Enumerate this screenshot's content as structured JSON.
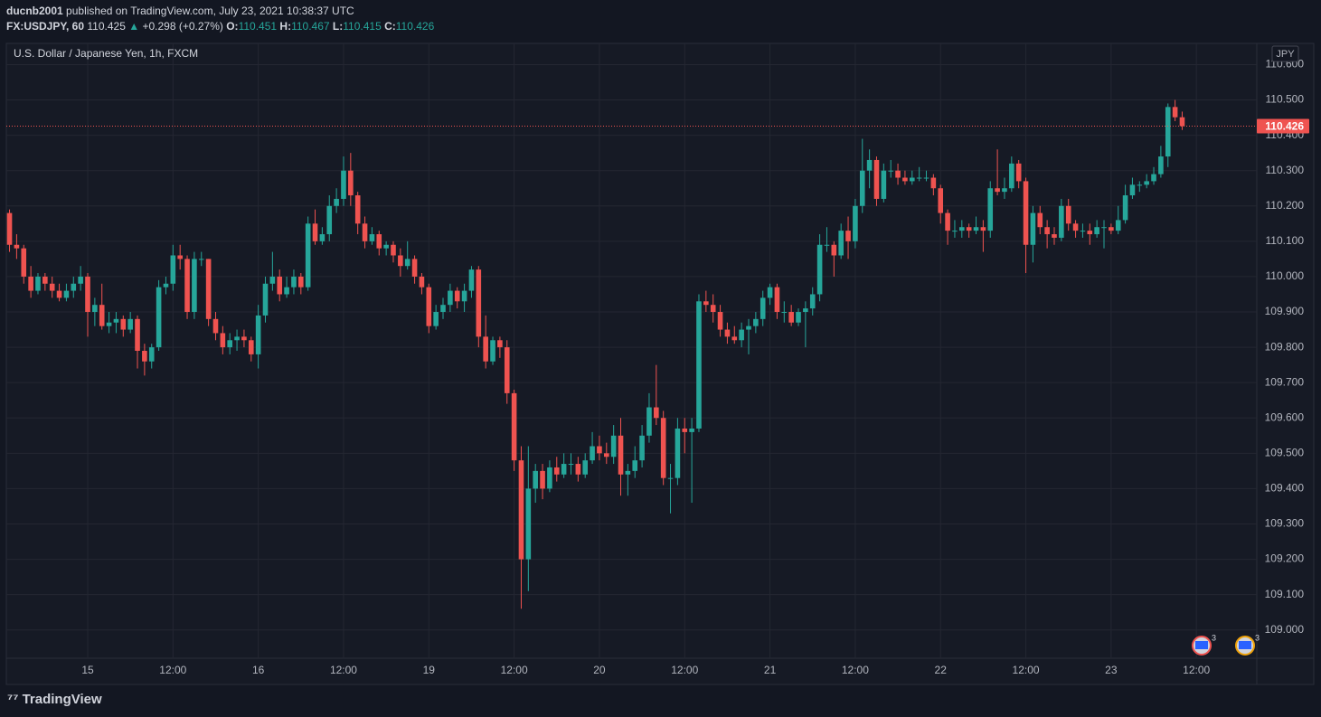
{
  "header": {
    "author": "ducnb2001",
    "published": "published on TradingView.com, July 23, 2021 10:38:37 UTC",
    "symbol": "FX:USDJPY, 60",
    "price": "110.425",
    "arrow": "▲",
    "change": "+0.298 (+0.27%)",
    "o_label": "O:",
    "o": "110.451",
    "h_label": "H:",
    "h": "110.467",
    "l_label": "L:",
    "l": "110.415",
    "c_label": "C:",
    "c": "110.426"
  },
  "footer": {
    "logo": "TradingView"
  },
  "event_badges": [
    "3",
    "3"
  ],
  "chart_data": {
    "type": "candlestick",
    "legend": "U.S. Dollar / Japanese Yen, 1h, FXCM",
    "currency": "JPY",
    "up_color": "#26a69a",
    "down_color": "#ef5350",
    "grid": true,
    "last_price": 110.426,
    "xlim": [
      -0.45,
      175.5
    ],
    "ylim": [
      108.92,
      110.66
    ],
    "xticks": [
      {
        "value": 11,
        "label": "15"
      },
      {
        "value": 23,
        "label": "12:00"
      },
      {
        "value": 35,
        "label": "16"
      },
      {
        "value": 47,
        "label": "12:00"
      },
      {
        "value": 59,
        "label": "19"
      },
      {
        "value": 71,
        "label": "12:00"
      },
      {
        "value": 83,
        "label": "20"
      },
      {
        "value": 95,
        "label": "12:00"
      },
      {
        "value": 107,
        "label": "21"
      },
      {
        "value": 119,
        "label": "12:00"
      },
      {
        "value": 131,
        "label": "22"
      },
      {
        "value": 143,
        "label": "12:00"
      },
      {
        "value": 155,
        "label": "23"
      },
      {
        "value": 167,
        "label": "12:00"
      }
    ],
    "yticks": [
      {
        "value": 109.0,
        "label": "109.000"
      },
      {
        "value": 109.1,
        "label": "109.100"
      },
      {
        "value": 109.2,
        "label": "109.200"
      },
      {
        "value": 109.3,
        "label": "109.300"
      },
      {
        "value": 109.4,
        "label": "109.400"
      },
      {
        "value": 109.5,
        "label": "109.500"
      },
      {
        "value": 109.6,
        "label": "109.600"
      },
      {
        "value": 109.7,
        "label": "109.700"
      },
      {
        "value": 109.8,
        "label": "109.800"
      },
      {
        "value": 109.9,
        "label": "109.900"
      },
      {
        "value": 110.0,
        "label": "110.000"
      },
      {
        "value": 110.1,
        "label": "110.100"
      },
      {
        "value": 110.2,
        "label": "110.200"
      },
      {
        "value": 110.3,
        "label": "110.300"
      },
      {
        "value": 110.4,
        "label": "110.400"
      },
      {
        "value": 110.5,
        "label": "110.500"
      },
      {
        "value": 110.6,
        "label": "110.600"
      }
    ],
    "candles": [
      [
        110.18,
        110.19,
        110.07,
        110.09
      ],
      [
        110.09,
        110.12,
        110.05,
        110.08
      ],
      [
        110.08,
        110.09,
        109.98,
        110.0
      ],
      [
        110.0,
        110.03,
        109.94,
        109.96
      ],
      [
        109.96,
        110.01,
        109.95,
        110.0
      ],
      [
        110.0,
        110.01,
        109.96,
        109.98
      ],
      [
        109.98,
        110.0,
        109.94,
        109.96
      ],
      [
        109.96,
        109.98,
        109.93,
        109.94
      ],
      [
        109.94,
        109.98,
        109.93,
        109.96
      ],
      [
        109.96,
        110.0,
        109.94,
        109.98
      ],
      [
        109.98,
        110.03,
        109.96,
        110.0
      ],
      [
        110.0,
        110.01,
        109.83,
        109.9
      ],
      [
        109.9,
        109.94,
        109.86,
        109.92
      ],
      [
        109.92,
        109.98,
        109.85,
        109.86
      ],
      [
        109.86,
        109.9,
        109.84,
        109.87
      ],
      [
        109.87,
        109.9,
        109.84,
        109.88
      ],
      [
        109.88,
        109.89,
        109.83,
        109.85
      ],
      [
        109.85,
        109.9,
        109.84,
        109.88
      ],
      [
        109.88,
        109.89,
        109.74,
        109.79
      ],
      [
        109.79,
        109.81,
        109.72,
        109.76
      ],
      [
        109.76,
        109.81,
        109.74,
        109.8
      ],
      [
        109.8,
        109.99,
        109.79,
        109.97
      ],
      [
        109.97,
        110.0,
        109.95,
        109.98
      ],
      [
        109.98,
        110.09,
        109.96,
        110.06
      ],
      [
        110.06,
        110.09,
        110.02,
        110.05
      ],
      [
        110.05,
        110.06,
        109.88,
        109.9
      ],
      [
        109.9,
        110.07,
        109.88,
        110.05
      ],
      [
        110.05,
        110.07,
        110.03,
        110.05
      ],
      [
        110.05,
        110.05,
        109.86,
        109.88
      ],
      [
        109.88,
        109.9,
        109.82,
        109.84
      ],
      [
        109.84,
        109.86,
        109.78,
        109.8
      ],
      [
        109.8,
        109.84,
        109.78,
        109.82
      ],
      [
        109.82,
        109.85,
        109.79,
        109.83
      ],
      [
        109.83,
        109.85,
        109.8,
        109.82
      ],
      [
        109.82,
        109.83,
        109.76,
        109.78
      ],
      [
        109.78,
        109.92,
        109.74,
        109.89
      ],
      [
        109.89,
        110.0,
        109.87,
        109.98
      ],
      [
        109.98,
        110.07,
        109.96,
        110.0
      ],
      [
        110.0,
        110.02,
        109.93,
        109.95
      ],
      [
        109.95,
        110.0,
        109.94,
        109.97
      ],
      [
        109.97,
        110.02,
        109.95,
        110.0
      ],
      [
        110.0,
        110.01,
        109.95,
        109.97
      ],
      [
        109.97,
        110.17,
        109.96,
        110.15
      ],
      [
        110.15,
        110.19,
        110.09,
        110.1
      ],
      [
        110.1,
        110.14,
        110.09,
        110.12
      ],
      [
        110.12,
        110.23,
        110.1,
        110.2
      ],
      [
        110.2,
        110.25,
        110.18,
        110.22
      ],
      [
        110.22,
        110.34,
        110.2,
        110.3
      ],
      [
        110.3,
        110.35,
        110.2,
        110.23
      ],
      [
        110.23,
        110.24,
        110.12,
        110.15
      ],
      [
        110.15,
        110.17,
        110.08,
        110.1
      ],
      [
        110.1,
        110.14,
        110.09,
        110.12
      ],
      [
        110.12,
        110.13,
        110.06,
        110.08
      ],
      [
        110.08,
        110.1,
        110.06,
        110.09
      ],
      [
        110.09,
        110.1,
        110.04,
        110.06
      ],
      [
        110.06,
        110.08,
        110.0,
        110.03
      ],
      [
        110.03,
        110.1,
        110.02,
        110.05
      ],
      [
        110.05,
        110.06,
        109.98,
        110.0
      ],
      [
        110.0,
        110.01,
        109.95,
        109.97
      ],
      [
        109.97,
        109.98,
        109.84,
        109.86
      ],
      [
        109.86,
        109.92,
        109.85,
        109.9
      ],
      [
        109.9,
        109.94,
        109.88,
        109.92
      ],
      [
        109.92,
        109.98,
        109.9,
        109.96
      ],
      [
        109.96,
        109.97,
        109.91,
        109.93
      ],
      [
        109.93,
        109.98,
        109.9,
        109.96
      ],
      [
        109.96,
        110.03,
        109.94,
        110.02
      ],
      [
        110.02,
        110.03,
        109.8,
        109.83
      ],
      [
        109.83,
        109.89,
        109.74,
        109.76
      ],
      [
        109.76,
        109.83,
        109.75,
        109.82
      ],
      [
        109.82,
        109.83,
        109.77,
        109.8
      ],
      [
        109.8,
        109.82,
        109.64,
        109.67
      ],
      [
        109.67,
        109.68,
        109.45,
        109.48
      ],
      [
        109.48,
        109.52,
        109.06,
        109.2
      ],
      [
        109.2,
        109.52,
        109.11,
        109.4
      ],
      [
        109.4,
        109.47,
        109.36,
        109.45
      ],
      [
        109.45,
        109.47,
        109.37,
        109.4
      ],
      [
        109.4,
        109.48,
        109.39,
        109.46
      ],
      [
        109.46,
        109.49,
        109.42,
        109.44
      ],
      [
        109.44,
        109.5,
        109.43,
        109.47
      ],
      [
        109.47,
        109.5,
        109.44,
        109.47
      ],
      [
        109.47,
        109.49,
        109.42,
        109.44
      ],
      [
        109.44,
        109.5,
        109.43,
        109.48
      ],
      [
        109.48,
        109.56,
        109.47,
        109.52
      ],
      [
        109.52,
        109.55,
        109.48,
        109.5
      ],
      [
        109.5,
        109.53,
        109.47,
        109.49
      ],
      [
        109.49,
        109.58,
        109.47,
        109.55
      ],
      [
        109.55,
        109.6,
        109.38,
        109.44
      ],
      [
        109.44,
        109.47,
        109.38,
        109.45
      ],
      [
        109.45,
        109.52,
        109.43,
        109.48
      ],
      [
        109.48,
        109.58,
        109.46,
        109.55
      ],
      [
        109.55,
        109.67,
        109.53,
        109.63
      ],
      [
        109.63,
        109.75,
        109.58,
        109.6
      ],
      [
        109.6,
        109.62,
        109.41,
        109.43
      ],
      [
        109.43,
        109.47,
        109.33,
        109.43
      ],
      [
        109.43,
        109.6,
        109.41,
        109.57
      ],
      [
        109.57,
        109.6,
        109.5,
        109.56
      ],
      [
        109.56,
        109.6,
        109.36,
        109.57
      ],
      [
        109.57,
        109.95,
        109.56,
        109.93
      ],
      [
        109.93,
        109.96,
        109.9,
        109.92
      ],
      [
        109.92,
        109.95,
        109.87,
        109.9
      ],
      [
        109.9,
        109.92,
        109.83,
        109.85
      ],
      [
        109.85,
        109.87,
        109.81,
        109.83
      ],
      [
        109.83,
        109.86,
        109.81,
        109.82
      ],
      [
        109.82,
        109.87,
        109.8,
        109.85
      ],
      [
        109.85,
        109.88,
        109.78,
        109.86
      ],
      [
        109.86,
        109.9,
        109.84,
        109.88
      ],
      [
        109.88,
        109.96,
        109.86,
        109.94
      ],
      [
        109.94,
        109.98,
        109.92,
        109.97
      ],
      [
        109.97,
        109.98,
        109.88,
        109.9
      ],
      [
        109.9,
        109.93,
        109.87,
        109.9
      ],
      [
        109.9,
        109.92,
        109.86,
        109.87
      ],
      [
        109.87,
        109.91,
        109.86,
        109.9
      ],
      [
        109.9,
        109.93,
        109.8,
        109.91
      ],
      [
        109.91,
        109.97,
        109.89,
        109.95
      ],
      [
        109.95,
        110.12,
        109.93,
        110.09
      ],
      [
        110.09,
        110.14,
        110.07,
        110.09
      ],
      [
        110.09,
        110.1,
        110.0,
        110.06
      ],
      [
        110.06,
        110.15,
        110.05,
        110.13
      ],
      [
        110.13,
        110.17,
        110.05,
        110.1
      ],
      [
        110.1,
        110.22,
        110.08,
        110.2
      ],
      [
        110.2,
        110.39,
        110.18,
        110.3
      ],
      [
        110.3,
        110.36,
        110.25,
        110.33
      ],
      [
        110.33,
        110.34,
        110.2,
        110.22
      ],
      [
        110.22,
        110.32,
        110.21,
        110.3
      ],
      [
        110.3,
        110.33,
        110.28,
        110.3
      ],
      [
        110.3,
        110.32,
        110.26,
        110.28
      ],
      [
        110.28,
        110.3,
        110.26,
        110.27
      ],
      [
        110.27,
        110.3,
        110.26,
        110.28
      ],
      [
        110.28,
        110.31,
        110.27,
        110.28
      ],
      [
        110.28,
        110.3,
        110.27,
        110.28
      ],
      [
        110.28,
        110.29,
        110.23,
        110.25
      ],
      [
        110.25,
        110.26,
        110.15,
        110.18
      ],
      [
        110.18,
        110.19,
        110.09,
        110.13
      ],
      [
        110.13,
        110.16,
        110.11,
        110.13
      ],
      [
        110.13,
        110.16,
        110.11,
        110.14
      ],
      [
        110.14,
        110.15,
        110.11,
        110.13
      ],
      [
        110.13,
        110.17,
        110.12,
        110.14
      ],
      [
        110.14,
        110.16,
        110.07,
        110.13
      ],
      [
        110.13,
        110.27,
        110.11,
        110.25
      ],
      [
        110.25,
        110.36,
        110.23,
        110.24
      ],
      [
        110.24,
        110.28,
        110.22,
        110.25
      ],
      [
        110.25,
        110.34,
        110.24,
        110.32
      ],
      [
        110.32,
        110.33,
        110.25,
        110.27
      ],
      [
        110.27,
        110.28,
        110.01,
        110.09
      ],
      [
        110.09,
        110.2,
        110.04,
        110.18
      ],
      [
        110.18,
        110.2,
        110.12,
        110.14
      ],
      [
        110.14,
        110.16,
        110.08,
        110.12
      ],
      [
        110.12,
        110.14,
        110.09,
        110.11
      ],
      [
        110.11,
        110.22,
        110.1,
        110.2
      ],
      [
        110.2,
        110.22,
        110.13,
        110.15
      ],
      [
        110.15,
        110.16,
        110.11,
        110.13
      ],
      [
        110.13,
        110.15,
        110.11,
        110.13
      ],
      [
        110.13,
        110.15,
        110.09,
        110.12
      ],
      [
        110.12,
        110.16,
        110.11,
        110.14
      ],
      [
        110.14,
        110.16,
        110.08,
        110.14
      ],
      [
        110.14,
        110.15,
        110.12,
        110.13
      ],
      [
        110.13,
        110.2,
        110.12,
        110.16
      ],
      [
        110.16,
        110.26,
        110.15,
        110.23
      ],
      [
        110.23,
        110.28,
        110.22,
        110.26
      ],
      [
        110.26,
        110.27,
        110.24,
        110.26
      ],
      [
        110.26,
        110.29,
        110.25,
        110.27
      ],
      [
        110.27,
        110.31,
        110.26,
        110.29
      ],
      [
        110.29,
        110.37,
        110.28,
        110.34
      ],
      [
        110.34,
        110.49,
        110.31,
        110.48
      ],
      [
        110.48,
        110.5,
        110.44,
        110.451
      ],
      [
        110.451,
        110.467,
        110.415,
        110.426
      ]
    ]
  }
}
